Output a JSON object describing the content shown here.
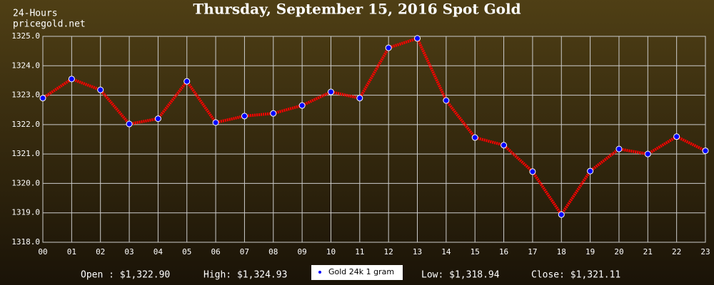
{
  "chart_data": {
    "type": "line",
    "title": "Thursday, September 15, 2016 Spot Gold",
    "corner_text": [
      "24-Hours",
      "pricegold.net"
    ],
    "categories": [
      "00",
      "01",
      "02",
      "03",
      "04",
      "05",
      "06",
      "07",
      "08",
      "09",
      "10",
      "11",
      "12",
      "13",
      "14",
      "15",
      "16",
      "17",
      "18",
      "19",
      "20",
      "21",
      "22",
      "23"
    ],
    "series": [
      {
        "name": "Gold 24k 1 gram",
        "color": "#ff0000",
        "marker_color": "#0000ff",
        "values": [
          1322.9,
          1323.55,
          1323.18,
          1322.02,
          1322.2,
          1323.47,
          1322.07,
          1322.29,
          1322.38,
          1322.65,
          1323.11,
          1322.9,
          1324.61,
          1324.93,
          1322.82,
          1321.56,
          1321.3,
          1320.4,
          1318.94,
          1320.42,
          1321.17,
          1321.0,
          1321.59,
          1321.11
        ]
      }
    ],
    "ylim": [
      1318,
      1325
    ],
    "yticks": [
      {
        "value": 1318,
        "label": "1318.0"
      },
      {
        "value": 1319,
        "label": "1319.0"
      },
      {
        "value": 1320,
        "label": "1320.0"
      },
      {
        "value": 1321,
        "label": "1321.0"
      },
      {
        "value": 1322,
        "label": "1322.0"
      },
      {
        "value": 1323,
        "label": "1323.0"
      },
      {
        "value": 1324,
        "label": "1324.0"
      },
      {
        "value": 1325,
        "label": "1325.0"
      }
    ],
    "grid": true,
    "footer": [
      "Open : $1,322.90",
      "High: $1,324.93",
      "Low: $1,318.94",
      "Close: $1,321.11"
    ]
  }
}
